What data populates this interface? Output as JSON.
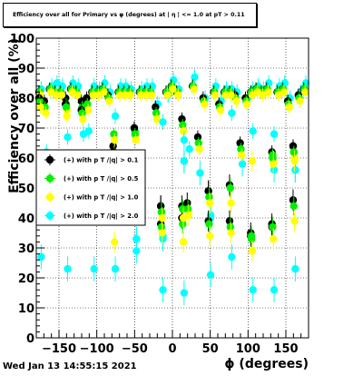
{
  "chart_data": {
    "type": "scatter",
    "title": "Efficiency over all for Primary vs φ (degrees) at |  η | <= 1.0 at pT > 0.11",
    "xlabel": "ϕ (degrees)",
    "ylabel": "Efficiency over all (%)",
    "xlim": [
      -180,
      180
    ],
    "ylim": [
      0,
      100
    ],
    "x_ticks": [
      -150,
      -100,
      -50,
      0,
      50,
      100,
      150
    ],
    "y_ticks": [
      0,
      10,
      20,
      30,
      40,
      50,
      60,
      70,
      80,
      90,
      100
    ],
    "grid": true,
    "legend_position": "middle-left",
    "footer": "Wed Jan 13 14:55:15 2021",
    "colors": [
      "#000000",
      "#00ee00",
      "#ffff00",
      "#00ffff"
    ],
    "series": [
      {
        "name": "(+) with p T /|q| > 0.1",
        "x": [
          -175,
          -168,
          -161,
          -154,
          -147,
          -140,
          -133,
          -126,
          -119,
          -112,
          -105,
          -98,
          -91,
          -84,
          -77,
          -70,
          -63,
          -56,
          -49,
          -42,
          -35,
          -28,
          -21,
          -14,
          -7,
          0,
          7,
          14,
          21,
          28,
          35,
          42,
          49,
          56,
          63,
          70,
          77,
          84,
          91,
          98,
          105,
          112,
          119,
          126,
          133,
          140,
          147,
          154,
          161,
          168,
          175
        ],
        "y": [
          82,
          79,
          83,
          82,
          82,
          80,
          83,
          82,
          79,
          80,
          82,
          82,
          83,
          81,
          64,
          82,
          82,
          82,
          70,
          82,
          82,
          82,
          77,
          44,
          82,
          84,
          82,
          73,
          45,
          84,
          67,
          80,
          49,
          82,
          78,
          82,
          82,
          81,
          65,
          80,
          82,
          83,
          82,
          83,
          62,
          82,
          83,
          79,
          64,
          81,
          83
        ]
      },
      {
        "name": "(+) with p T /|q| > 0.5",
        "x": [
          -175,
          -168,
          -161,
          -154,
          -147,
          -140,
          -133,
          -126,
          -119,
          -112,
          -105,
          -98,
          -91,
          -84,
          -77,
          -70,
          -63,
          -56,
          -49,
          -42,
          -35,
          -28,
          -21,
          -14,
          -7,
          0,
          7,
          14,
          21,
          28,
          35,
          42,
          49,
          56,
          63,
          70,
          77,
          84,
          91,
          98,
          105,
          112,
          119,
          126,
          133,
          140,
          147,
          154,
          161,
          168,
          175
        ],
        "y": [
          82,
          77,
          83,
          82,
          82,
          78,
          83,
          82,
          77,
          78,
          82,
          82,
          83,
          80,
          62,
          82,
          82,
          82,
          69,
          82,
          82,
          82,
          75,
          42,
          82,
          84,
          82,
          71,
          43,
          84,
          65,
          79,
          47,
          82,
          77,
          82,
          82,
          80,
          63,
          79,
          82,
          83,
          82,
          83,
          61,
          82,
          83,
          78,
          62,
          80,
          83
        ]
      },
      {
        "name": "(+) with p T /|q| > 1.0",
        "x": [
          -175,
          -168,
          -161,
          -154,
          -147,
          -140,
          -133,
          -126,
          -119,
          -112,
          -105,
          -98,
          -91,
          -84,
          -77,
          -70,
          -63,
          -56,
          -49,
          -42,
          -35,
          -28,
          -21,
          -14,
          -7,
          0,
          7,
          14,
          21,
          28,
          35,
          42,
          49,
          56,
          63,
          70,
          77,
          84,
          91,
          98,
          105,
          112,
          119,
          126,
          133,
          140,
          147,
          154,
          161,
          168,
          175
        ],
        "y": [
          81,
          75,
          82,
          81,
          81,
          76,
          82,
          81,
          75,
          76,
          81,
          81,
          82,
          79,
          60,
          81,
          81,
          81,
          67,
          81,
          81,
          81,
          73,
          40,
          81,
          83,
          81,
          69,
          41,
          83,
          63,
          78,
          45,
          81,
          76,
          81,
          81,
          79,
          61,
          78,
          81,
          82,
          81,
          82,
          59,
          81,
          82,
          77,
          60,
          79,
          82
        ]
      },
      {
        "name": "(+) with p T /|q| > 2.0",
        "x": [
          -175,
          -168,
          -161,
          -154,
          -147,
          -140,
          -133,
          -126,
          -119,
          -112,
          -105,
          -98,
          -91,
          -84,
          -77,
          -70,
          -63,
          -56,
          -49,
          -42,
          -35,
          -28,
          -21,
          -14,
          -7,
          0,
          7,
          14,
          21,
          28,
          35,
          42,
          49,
          56,
          63,
          70,
          77,
          84,
          91,
          98,
          105,
          112,
          119,
          126,
          133,
          140,
          147,
          154,
          161,
          168,
          175
        ],
        "y": [
          83,
          62,
          84,
          85,
          84,
          67,
          85,
          84,
          68,
          69,
          84,
          83,
          85,
          82,
          56,
          84,
          84,
          83,
          33,
          83,
          84,
          84,
          78,
          34,
          81,
          86,
          83,
          59,
          63,
          87,
          55,
          80,
          41,
          84,
          79,
          83,
          83,
          82,
          58,
          80,
          83,
          84,
          83,
          85,
          56,
          84,
          85,
          80,
          56,
          82,
          85
        ]
      }
    ],
    "series_sparse": [
      {
        "name": "(+) with p T /|q| > 0.1",
        "x": [
          -175,
          -140,
          -119,
          -77,
          -49,
          -14,
          -14,
          14,
          14,
          49,
          49,
          77,
          77,
          105,
          105,
          133,
          133,
          161,
          161
        ],
        "y": [
          80,
          78,
          76,
          62,
          70,
          44,
          38,
          44,
          40,
          49,
          39,
          51,
          39,
          35,
          34,
          38,
          37,
          64,
          46
        ]
      },
      {
        "name": "(+) with p T /|q| > 0.5",
        "x": [
          -175,
          -140,
          -119,
          -77,
          -49,
          -14,
          -14,
          14,
          14,
          49,
          49,
          77,
          77,
          105,
          105,
          133,
          133,
          161,
          161
        ],
        "y": [
          79,
          77,
          75,
          68,
          68,
          42,
          37,
          43,
          38,
          47,
          38,
          50,
          37,
          34,
          33,
          37,
          60,
          62,
          44
        ]
      },
      {
        "name": "(+) with p T /|q| > 1.0",
        "x": [
          -175,
          -140,
          -119,
          -77,
          -77,
          -49,
          -14,
          -14,
          14,
          14,
          49,
          49,
          77,
          77,
          105,
          105,
          133,
          133,
          161,
          161
        ],
        "y": [
          77,
          74,
          73,
          66,
          32,
          66,
          40,
          35,
          40,
          32,
          45,
          34,
          45,
          35,
          59,
          29,
          58,
          33,
          59,
          39
        ]
      },
      {
        "name": "(+) with p T /|q| > 2.0",
        "x": [
          -175,
          -140,
          -119,
          -105,
          -77,
          -77,
          -49,
          -49,
          -14,
          -14,
          -14,
          14,
          14,
          14,
          49,
          49,
          77,
          77,
          105,
          105,
          133,
          133,
          161,
          161
        ],
        "y": [
          27,
          23,
          68,
          23,
          74,
          23,
          33,
          29,
          72,
          33,
          16,
          66,
          59,
          15,
          40,
          21,
          75,
          27,
          69,
          16,
          68,
          16,
          56,
          23
        ]
      }
    ]
  }
}
